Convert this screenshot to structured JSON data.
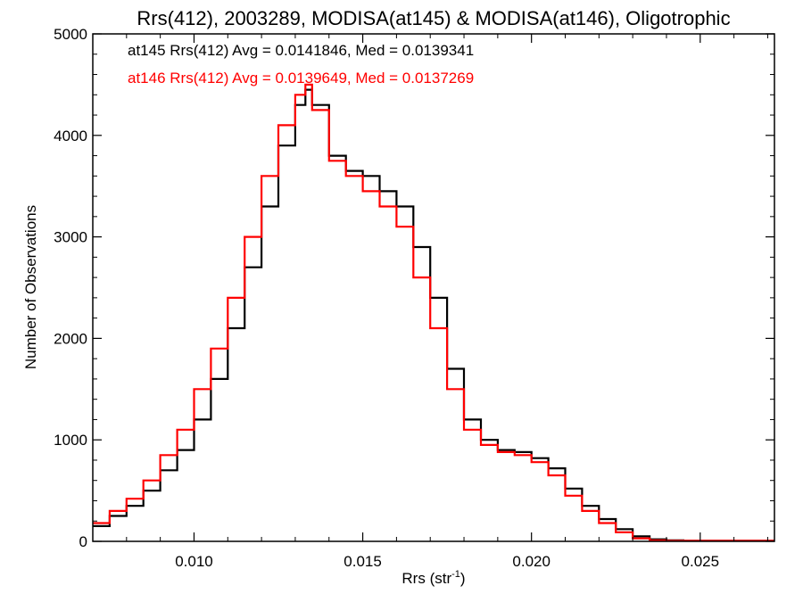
{
  "chart_data": {
    "type": "line",
    "step": true,
    "title": "Rrs(412), 2003289, MODISA(at145) & MODISA(at146), Oligotrophic",
    "xlabel": "Rrs (str",
    "xlabel_sup": "-1",
    "xlabel_close": ")",
    "ylabel": "Number of Observations",
    "xlim": [
      0.007,
      0.0272
    ],
    "ylim": [
      0,
      5000
    ],
    "xticks": [
      0.01,
      0.015,
      0.02,
      0.025
    ],
    "xtick_labels": [
      "0.010",
      "0.015",
      "0.020",
      "0.025"
    ],
    "yticks": [
      0,
      1000,
      2000,
      3000,
      4000,
      5000
    ],
    "ytick_labels": [
      "0",
      "1000",
      "2000",
      "3000",
      "4000",
      "5000"
    ],
    "grid": false,
    "legend_position": "top-left",
    "legend": [
      "at145 Rrs(412) Avg = 0.0141846, Med = 0.0139341",
      "at146 Rrs(412) Avg = 0.0139649, Med = 0.0137269"
    ],
    "series": [
      {
        "name": "at145",
        "color": "#000000",
        "x": [
          0.007,
          0.0075,
          0.008,
          0.0085,
          0.009,
          0.0095,
          0.01,
          0.0105,
          0.011,
          0.0115,
          0.012,
          0.0125,
          0.013,
          0.0133,
          0.0135,
          0.014,
          0.0145,
          0.015,
          0.0155,
          0.016,
          0.0165,
          0.017,
          0.0175,
          0.018,
          0.0185,
          0.019,
          0.0195,
          0.02,
          0.0205,
          0.021,
          0.0215,
          0.022,
          0.0225,
          0.023,
          0.0235,
          0.024,
          0.0245,
          0.025,
          0.026,
          0.0272
        ],
        "y": [
          150,
          250,
          350,
          500,
          700,
          900,
          1200,
          1600,
          2100,
          2700,
          3300,
          3900,
          4300,
          4450,
          4300,
          3800,
          3650,
          3600,
          3450,
          3300,
          2900,
          2400,
          1700,
          1200,
          1000,
          900,
          880,
          820,
          720,
          520,
          350,
          220,
          120,
          50,
          20,
          10,
          5,
          5,
          5,
          5
        ]
      },
      {
        "name": "at146",
        "color": "#ff0000",
        "x": [
          0.007,
          0.0075,
          0.008,
          0.0085,
          0.009,
          0.0095,
          0.01,
          0.0105,
          0.011,
          0.0115,
          0.012,
          0.0125,
          0.013,
          0.0133,
          0.0135,
          0.014,
          0.0145,
          0.015,
          0.0155,
          0.016,
          0.0165,
          0.017,
          0.0175,
          0.018,
          0.0185,
          0.019,
          0.0195,
          0.02,
          0.0205,
          0.021,
          0.0215,
          0.022,
          0.0225,
          0.023,
          0.0235,
          0.024,
          0.0245,
          0.025,
          0.026,
          0.0272
        ],
        "y": [
          180,
          300,
          420,
          600,
          850,
          1100,
          1500,
          1900,
          2400,
          3000,
          3600,
          4100,
          4400,
          4500,
          4250,
          3750,
          3600,
          3450,
          3300,
          3100,
          2600,
          2100,
          1500,
          1100,
          950,
          880,
          850,
          780,
          650,
          450,
          300,
          180,
          90,
          30,
          10,
          5,
          5,
          5,
          5,
          5
        ]
      }
    ]
  }
}
